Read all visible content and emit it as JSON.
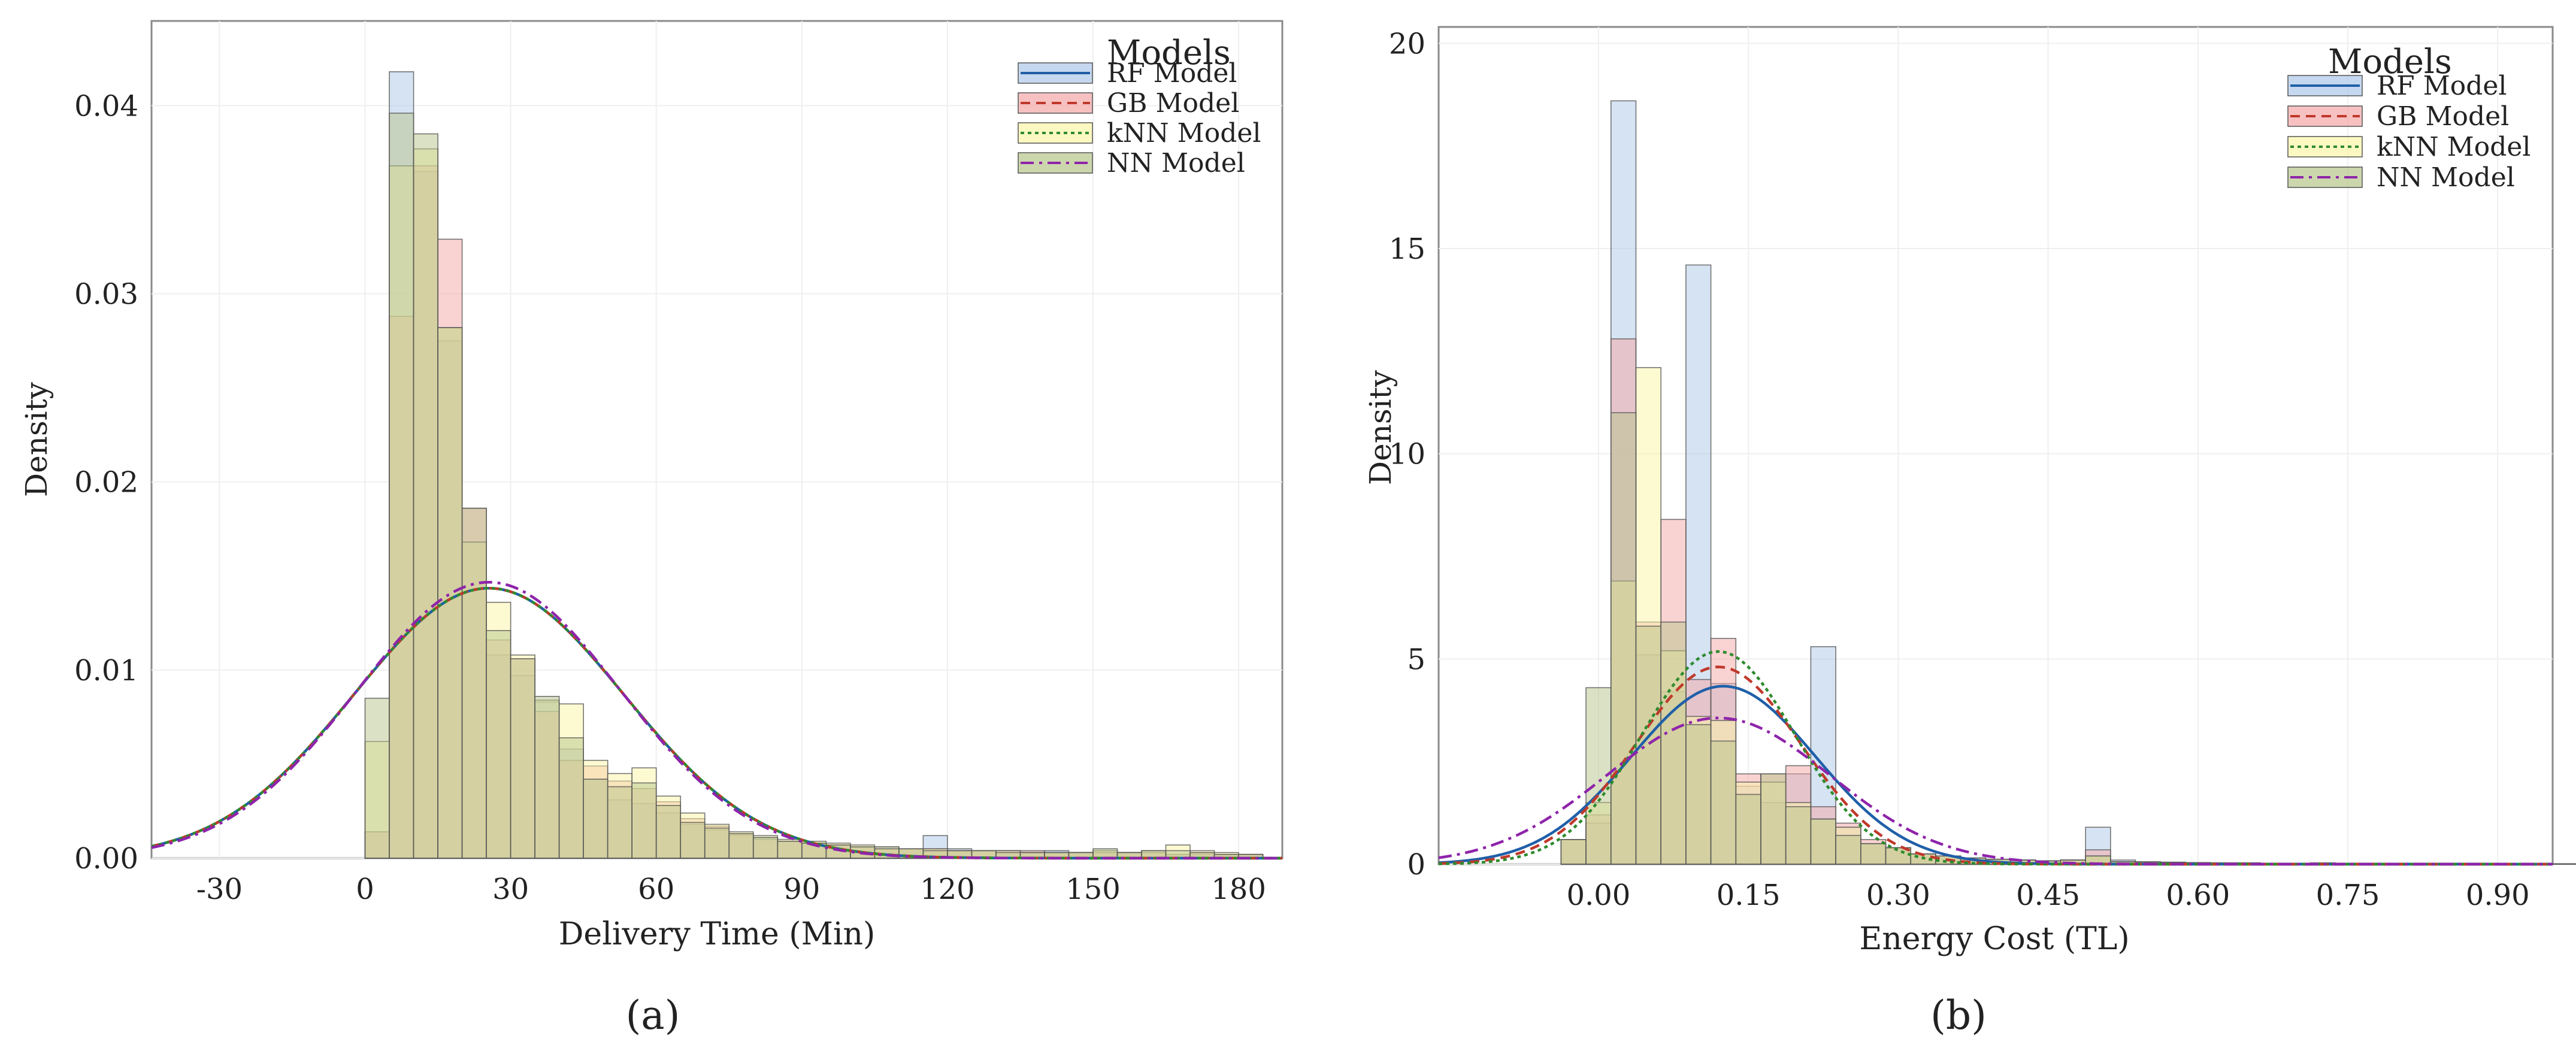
{
  "chart_data": [
    {
      "type": "histogram",
      "panel_label": "(a)",
      "xlabel": "Delivery Time (Min)",
      "ylabel": "Density",
      "xlim": [
        -44,
        189
      ],
      "ylim": [
        0,
        0.0445
      ],
      "xticks": [
        -30,
        0,
        30,
        60,
        90,
        120,
        150,
        180
      ],
      "xtick_labels": [
        "-30",
        "0",
        "30",
        "60",
        "90",
        "120",
        "150",
        "180"
      ],
      "yticks": [
        0,
        0.01,
        0.02,
        0.03,
        0.04
      ],
      "ytick_labels": [
        "0.00",
        "0.01",
        "0.02",
        "0.03",
        "0.04"
      ],
      "legend": {
        "title": "Models",
        "position": "top-right"
      },
      "bin_start": 0,
      "bin_width": 5,
      "series": [
        {
          "name": "RF Model",
          "line_style": "solid",
          "fill": "#aec7e8",
          "line": "#1f5fa8",
          "values": [
            0.0014,
            0.0418,
            0.0365,
            0.0275,
            0.0168,
            0.0108,
            0.0097,
            0.0083,
            0.0058,
            0.0042,
            0.0031,
            0.0029,
            0.0024,
            0.0018,
            0.0015,
            0.0012,
            0.0011,
            0.0009,
            0.0008,
            0.0007,
            0.0006,
            0.0006,
            0.0005,
            0.0012,
            0.0005,
            0.0004,
            0.0004,
            0.0003,
            0.0004,
            0.0003,
            0.0003,
            0.0003,
            0.0003,
            0.0002,
            0.0002,
            0.0002,
            0.0002
          ],
          "fit": {
            "mean": 25.5,
            "sd": 27.8
          }
        },
        {
          "name": "GB Model",
          "line_style": "dashed",
          "fill": "#f4a6a6",
          "line": "#c0392b",
          "values": [
            0.0014,
            0.0288,
            0.0368,
            0.0329,
            0.0186,
            0.0116,
            0.0106,
            0.0078,
            0.0052,
            0.0049,
            0.0041,
            0.0037,
            0.003,
            0.0021,
            0.0017,
            0.0013,
            0.001,
            0.0009,
            0.0008,
            0.0007,
            0.0006,
            0.0005,
            0.0005,
            0.0005,
            0.0004,
            0.0004,
            0.0004,
            0.0004,
            0.0003,
            0.0003,
            0.0003,
            0.0003,
            0.0003,
            0.0002,
            0.0003,
            0.0002,
            0.0002
          ],
          "fit": {
            "mean": 25.5,
            "sd": 27.8
          }
        },
        {
          "name": "kNN Model",
          "line_style": "dotted",
          "fill": "#fbf5a6",
          "line": "#2e8b2e",
          "values": [
            0.0062,
            0.0368,
            0.0377,
            0.0282,
            0.0168,
            0.0136,
            0.0108,
            0.0084,
            0.0082,
            0.0052,
            0.0045,
            0.0048,
            0.0033,
            0.0024,
            0.0018,
            0.0014,
            0.0012,
            0.001,
            0.0009,
            0.0008,
            0.0007,
            0.0006,
            0.0005,
            0.0005,
            0.0004,
            0.0004,
            0.0004,
            0.0003,
            0.0003,
            0.0003,
            0.0004,
            0.0003,
            0.0004,
            0.0007,
            0.0004,
            0.0003,
            0.0002
          ],
          "fit": {
            "mean": 25.5,
            "sd": 27.8
          }
        },
        {
          "name": "NN Model",
          "line_style": "dashdot",
          "fill": "#b7c48a",
          "line": "#8e24aa",
          "values": [
            0.0085,
            0.0396,
            0.0385,
            0.0282,
            0.0186,
            0.0121,
            0.0106,
            0.0086,
            0.0064,
            0.0042,
            0.0038,
            0.004,
            0.0028,
            0.0019,
            0.0016,
            0.0013,
            0.0011,
            0.0009,
            0.0008,
            0.0007,
            0.0006,
            0.0005,
            0.0005,
            0.0004,
            0.0004,
            0.0004,
            0.0003,
            0.0003,
            0.0003,
            0.0003,
            0.0005,
            0.0003,
            0.0004,
            0.0004,
            0.0003,
            0.0002,
            0.0002
          ],
          "fit": {
            "mean": 25.5,
            "sd": 27.2
          }
        }
      ]
    },
    {
      "type": "histogram",
      "panel_label": "(b)",
      "xlabel": "Energy Cost (TL)",
      "ylabel": "Density",
      "xlim": [
        -0.16,
        0.955
      ],
      "ylim": [
        0,
        20.4
      ],
      "xticks": [
        0,
        0.15,
        0.3,
        0.45,
        0.6,
        0.75,
        0.9
      ],
      "xtick_labels": [
        "0.00",
        "0.15",
        "0.30",
        "0.45",
        "0.60",
        "0.75",
        "0.90"
      ],
      "yticks": [
        0,
        5,
        10,
        15,
        20
      ],
      "ytick_labels": [
        "0",
        "5",
        "10",
        "15",
        "20"
      ],
      "legend": {
        "title": "Models",
        "position": "top-right"
      },
      "bin_start": -0.0375,
      "bin_width": 0.025,
      "series": [
        {
          "name": "RF Model",
          "line_style": "solid",
          "fill": "#aec7e8",
          "line": "#1f5fa8",
          "values": [
            0.6,
            1.0,
            18.6,
            5.1,
            4.2,
            14.6,
            4.4,
            1.9,
            1.5,
            2.2,
            5.3,
            0.9,
            0.5,
            0.4,
            0.25,
            0.2,
            0.15,
            0.12,
            0.1,
            0.08,
            0.1,
            0.9,
            0.1,
            0.06,
            0.05,
            0.04,
            0.03,
            0.03,
            0.02,
            0.02,
            0.02,
            0.02,
            0.02,
            0.02,
            0.02,
            0.02,
            0.02,
            0.01,
            0.01,
            0.01,
            0.01,
            0.02
          ],
          "fit": {
            "mean": 0.125,
            "sd": 0.092
          }
        },
        {
          "name": "GB Model",
          "line_style": "dashed",
          "fill": "#f4a6a6",
          "line": "#c0392b",
          "values": [
            0.6,
            1.2,
            12.8,
            5.9,
            8.4,
            4.5,
            5.5,
            2.2,
            2.2,
            2.4,
            1.4,
            1.0,
            0.6,
            0.4,
            0.25,
            0.2,
            0.15,
            0.12,
            0.1,
            0.08,
            0.1,
            0.35,
            0.06,
            0.05,
            0.04,
            0.03,
            0.03,
            0.03,
            0.02,
            0.02,
            0.02,
            0.02,
            0.02,
            0.02,
            0.02,
            0.02,
            0.02,
            0.01,
            0.01,
            0.01,
            0.01,
            0.01
          ],
          "fit": {
            "mean": 0.12,
            "sd": 0.083
          }
        },
        {
          "name": "kNN Model",
          "line_style": "dotted",
          "fill": "#fbf5a6",
          "line": "#2e8b2e",
          "values": [
            0.6,
            1.5,
            6.9,
            12.1,
            5.2,
            3.6,
            3.5,
            2.0,
            2.0,
            1.5,
            1.1,
            0.9,
            0.5,
            0.4,
            0.25,
            0.2,
            0.15,
            0.12,
            0.1,
            0.08,
            0.1,
            0.2,
            0.06,
            0.05,
            0.04,
            0.03,
            0.03,
            0.03,
            0.02,
            0.02,
            0.03,
            0.02,
            0.02,
            0.02,
            0.02,
            0.02,
            0.02,
            0.01,
            0.01,
            0.01,
            0.01,
            0.01
          ],
          "fit": {
            "mean": 0.12,
            "sd": 0.077
          }
        },
        {
          "name": "NN Model",
          "line_style": "dashdot",
          "fill": "#b7c48a",
          "line": "#8e24aa",
          "values": [
            0.6,
            4.3,
            11.0,
            5.8,
            5.9,
            3.4,
            3.0,
            1.7,
            2.2,
            1.4,
            1.1,
            0.7,
            0.5,
            0.4,
            0.25,
            0.2,
            0.15,
            0.12,
            0.1,
            0.08,
            0.1,
            0.2,
            0.06,
            0.05,
            0.04,
            0.03,
            0.03,
            0.03,
            0.02,
            0.02,
            0.03,
            0.02,
            0.02,
            0.02,
            0.02,
            0.02,
            0.02,
            0.01,
            0.01,
            0.01,
            0.01,
            0.01
          ],
          "fit": {
            "mean": 0.12,
            "sd": 0.112
          }
        }
      ]
    }
  ]
}
